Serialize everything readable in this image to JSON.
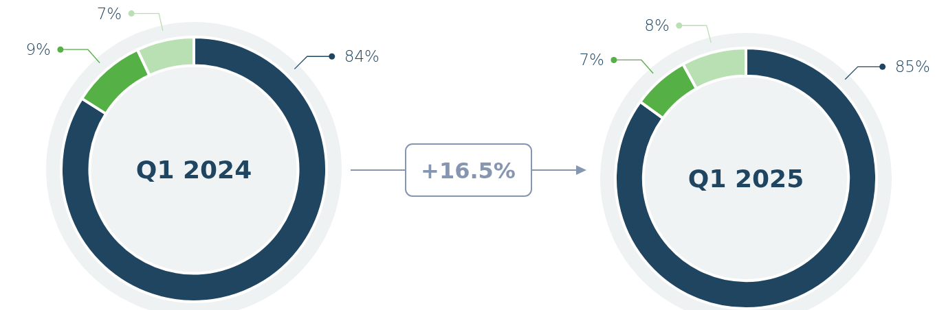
{
  "chart_data": [
    {
      "type": "donut",
      "title": "Q1 2024",
      "categories": [
        null,
        null,
        null
      ],
      "values": [
        84,
        9,
        7
      ],
      "colors": [
        "#1f4560",
        "#55b046",
        "#b9e0b2"
      ],
      "value_labels": [
        "84%",
        "9%",
        "7%"
      ]
    },
    {
      "type": "other",
      "annotations": [
        "+16.5%"
      ]
    },
    {
      "type": "donut",
      "title": "Q1 2025",
      "categories": [
        null,
        null,
        null
      ],
      "values": [
        85,
        7,
        8
      ],
      "colors": [
        "#1f4560",
        "#55b046",
        "#b9e0b2"
      ],
      "value_labels": [
        "85%",
        "7%",
        "8%"
      ]
    }
  ]
}
